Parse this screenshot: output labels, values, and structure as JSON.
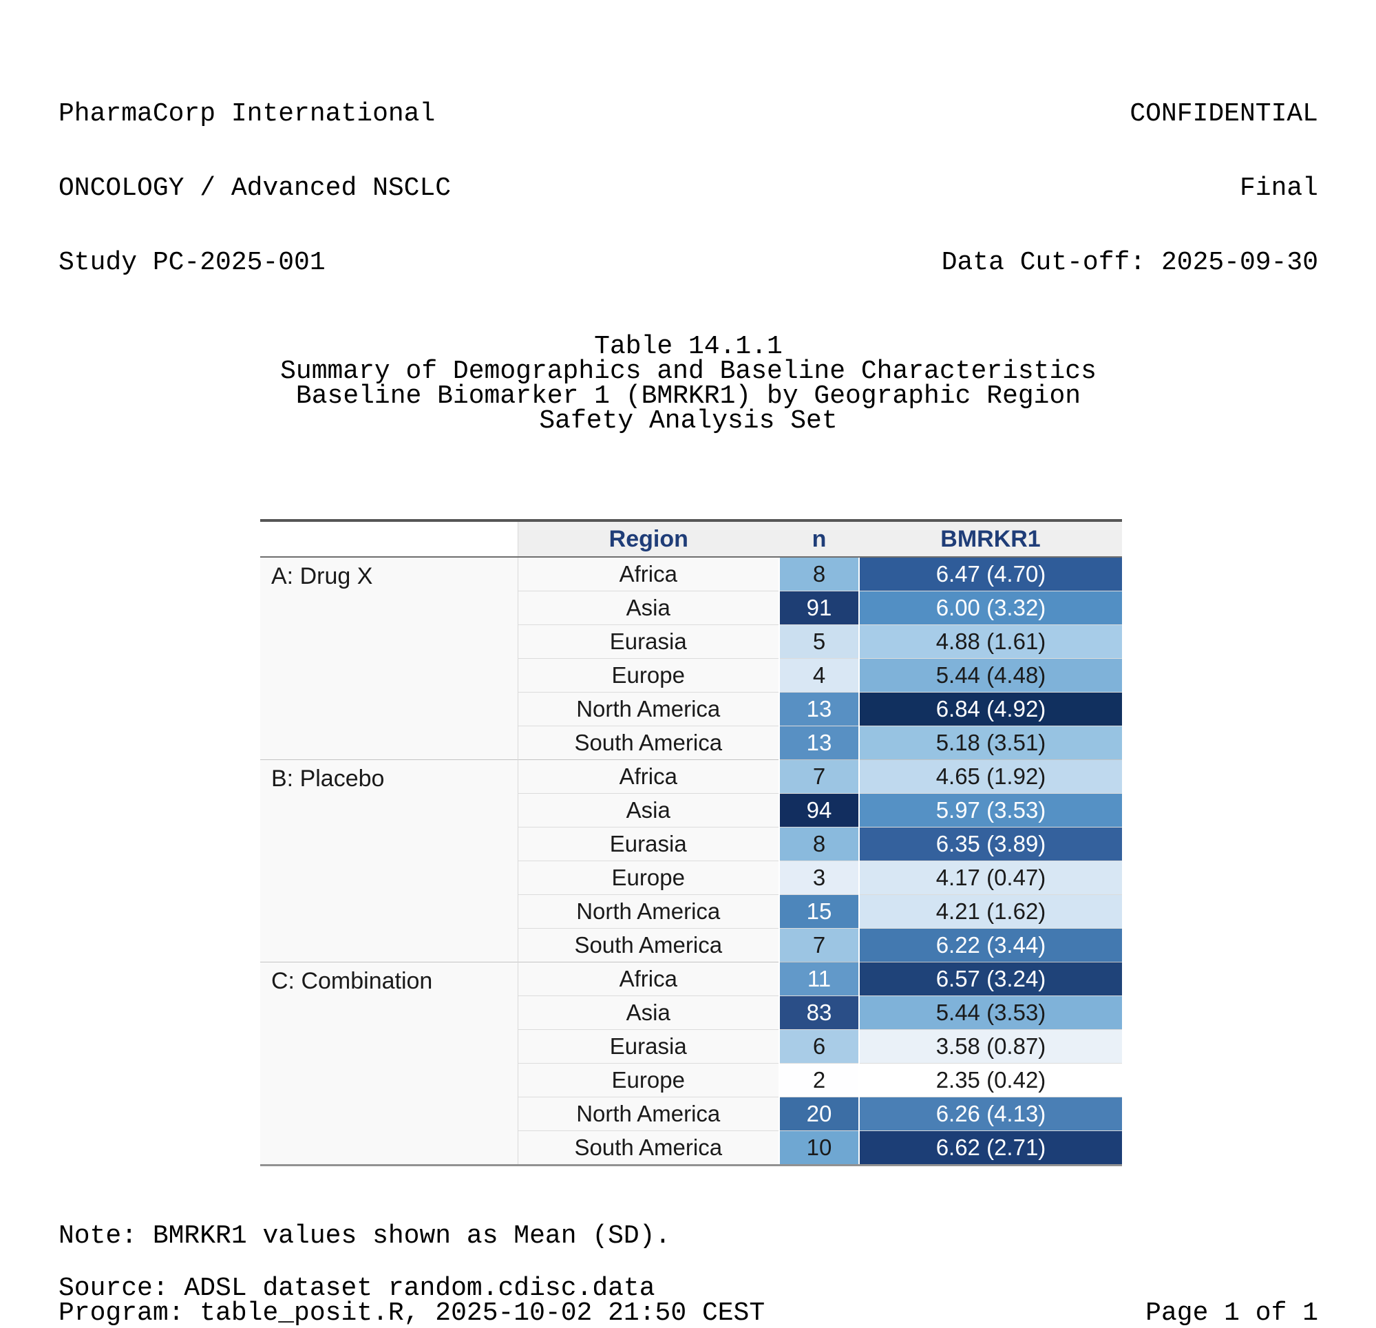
{
  "masthead": {
    "left": {
      "company": "PharmaCorp International",
      "indication": "ONCOLOGY / Advanced NSCLC",
      "study": "Study PC-2025-001"
    },
    "right": {
      "confidentiality": "CONFIDENTIAL",
      "status": "Final",
      "cutoff": "Data Cut-off: 2025-09-30"
    }
  },
  "titles": {
    "number": "Table 14.1.1",
    "title": "Summary of Demographics and Baseline Characteristics",
    "subtitle": "Baseline Biomarker 1 (BMRKR1) by Geographic Region",
    "population": "Safety Analysis Set"
  },
  "table": {
    "header": {
      "region": "Region",
      "n": "n",
      "bmrkr1": "BMRKR1"
    },
    "header_text_color": "#1F3D78",
    "groups": [
      {
        "arm": "A: Drug X",
        "rows": [
          {
            "region": "Africa",
            "n": "8",
            "n_bg": "#8ABADD",
            "n_fg": "#1A1A1A",
            "bmrkr1": "6.47 (4.70)",
            "bmrkr1_bg": "#2F5C99",
            "bmrkr1_fg": "#FFFFFF"
          },
          {
            "region": "Asia",
            "n": "91",
            "n_bg": "#1E3E74",
            "n_fg": "#FFFFFF",
            "bmrkr1": "6.00 (3.32)",
            "bmrkr1_bg": "#528FC4",
            "bmrkr1_fg": "#FFFFFF"
          },
          {
            "region": "Eurasia",
            "n": "5",
            "n_bg": "#CBDFF0",
            "n_fg": "#1A1A1A",
            "bmrkr1": "4.88 (1.61)",
            "bmrkr1_bg": "#A7CCE8",
            "bmrkr1_fg": "#1A1A1A"
          },
          {
            "region": "Europe",
            "n": "4",
            "n_bg": "#D9E7F4",
            "n_fg": "#1A1A1A",
            "bmrkr1": "5.44 (4.48)",
            "bmrkr1_bg": "#7FB2D9",
            "bmrkr1_fg": "#1A1A1A"
          },
          {
            "region": "North America",
            "n": "13",
            "n_bg": "#5890C3",
            "n_fg": "#FFFFFF",
            "bmrkr1": "6.84 (4.92)",
            "bmrkr1_bg": "#11305F",
            "bmrkr1_fg": "#FFFFFF"
          },
          {
            "region": "South America",
            "n": "13",
            "n_bg": "#5890C3",
            "n_fg": "#FFFFFF",
            "bmrkr1": "5.18 (3.51)",
            "bmrkr1_bg": "#97C3E2",
            "bmrkr1_fg": "#1A1A1A"
          }
        ]
      },
      {
        "arm": "B: Placebo",
        "rows": [
          {
            "region": "Africa",
            "n": "7",
            "n_bg": "#9CC5E3",
            "n_fg": "#1A1A1A",
            "bmrkr1": "4.65 (1.92)",
            "bmrkr1_bg": "#BFD9EE",
            "bmrkr1_fg": "#1A1A1A"
          },
          {
            "region": "Asia",
            "n": "94",
            "n_bg": "#122E5F",
            "n_fg": "#FFFFFF",
            "bmrkr1": "5.97 (3.53)",
            "bmrkr1_bg": "#5591C5",
            "bmrkr1_fg": "#FFFFFF"
          },
          {
            "region": "Eurasia",
            "n": "8",
            "n_bg": "#8ABADD",
            "n_fg": "#1A1A1A",
            "bmrkr1": "6.35 (3.89)",
            "bmrkr1_bg": "#34619D",
            "bmrkr1_fg": "#FFFFFF"
          },
          {
            "region": "Europe",
            "n": "3",
            "n_bg": "#E4EDF7",
            "n_fg": "#1A1A1A",
            "bmrkr1": "4.17 (0.47)",
            "bmrkr1_bg": "#D8E7F4",
            "bmrkr1_fg": "#1A1A1A"
          },
          {
            "region": "North America",
            "n": "15",
            "n_bg": "#4D86BB",
            "n_fg": "#FFFFFF",
            "bmrkr1": "4.21 (1.62)",
            "bmrkr1_bg": "#D3E4F3",
            "bmrkr1_fg": "#1A1A1A"
          },
          {
            "region": "South America",
            "n": "7",
            "n_bg": "#9CC5E3",
            "n_fg": "#1A1A1A",
            "bmrkr1": "6.22 (3.44)",
            "bmrkr1_bg": "#4379B0",
            "bmrkr1_fg": "#FFFFFF"
          }
        ]
      },
      {
        "arm": "C: Combination",
        "rows": [
          {
            "region": "Africa",
            "n": "11",
            "n_bg": "#6299C9",
            "n_fg": "#FFFFFF",
            "bmrkr1": "6.57 (3.24)",
            "bmrkr1_bg": "#1F4379",
            "bmrkr1_fg": "#FFFFFF"
          },
          {
            "region": "Asia",
            "n": "83",
            "n_bg": "#2A4E87",
            "n_fg": "#FFFFFF",
            "bmrkr1": "5.44 (3.53)",
            "bmrkr1_bg": "#7FB2D9",
            "bmrkr1_fg": "#1A1A1A"
          },
          {
            "region": "Eurasia",
            "n": "6",
            "n_bg": "#A9CCE7",
            "n_fg": "#1A1A1A",
            "bmrkr1": "3.58 (0.87)",
            "bmrkr1_bg": "#EAF1F8",
            "bmrkr1_fg": "#1A1A1A"
          },
          {
            "region": "Europe",
            "n": "2",
            "n_bg": "#FEFEFF",
            "n_fg": "#1A1A1A",
            "bmrkr1": "2.35 (0.42)",
            "bmrkr1_bg": "#FFFFFF",
            "bmrkr1_fg": "#1A1A1A"
          },
          {
            "region": "North America",
            "n": "20",
            "n_bg": "#3C6EA5",
            "n_fg": "#FFFFFF",
            "bmrkr1": "6.26 (4.13)",
            "bmrkr1_bg": "#4A7FB5",
            "bmrkr1_fg": "#FFFFFF"
          },
          {
            "region": "South America",
            "n": "10",
            "n_bg": "#6FA7D2",
            "n_fg": "#1A1A1A",
            "bmrkr1": "6.62 (2.71)",
            "bmrkr1_bg": "#1C3E76",
            "bmrkr1_fg": "#FFFFFF"
          }
        ]
      }
    ]
  },
  "footer": {
    "note": "Note: BMRKR1 values shown as Mean (SD).",
    "source": "Source: ADSL dataset random.cdisc.data",
    "program": "Program: table_posit.R, 2025-10-02 21:50 CEST",
    "page": "Page 1 of 1"
  }
}
